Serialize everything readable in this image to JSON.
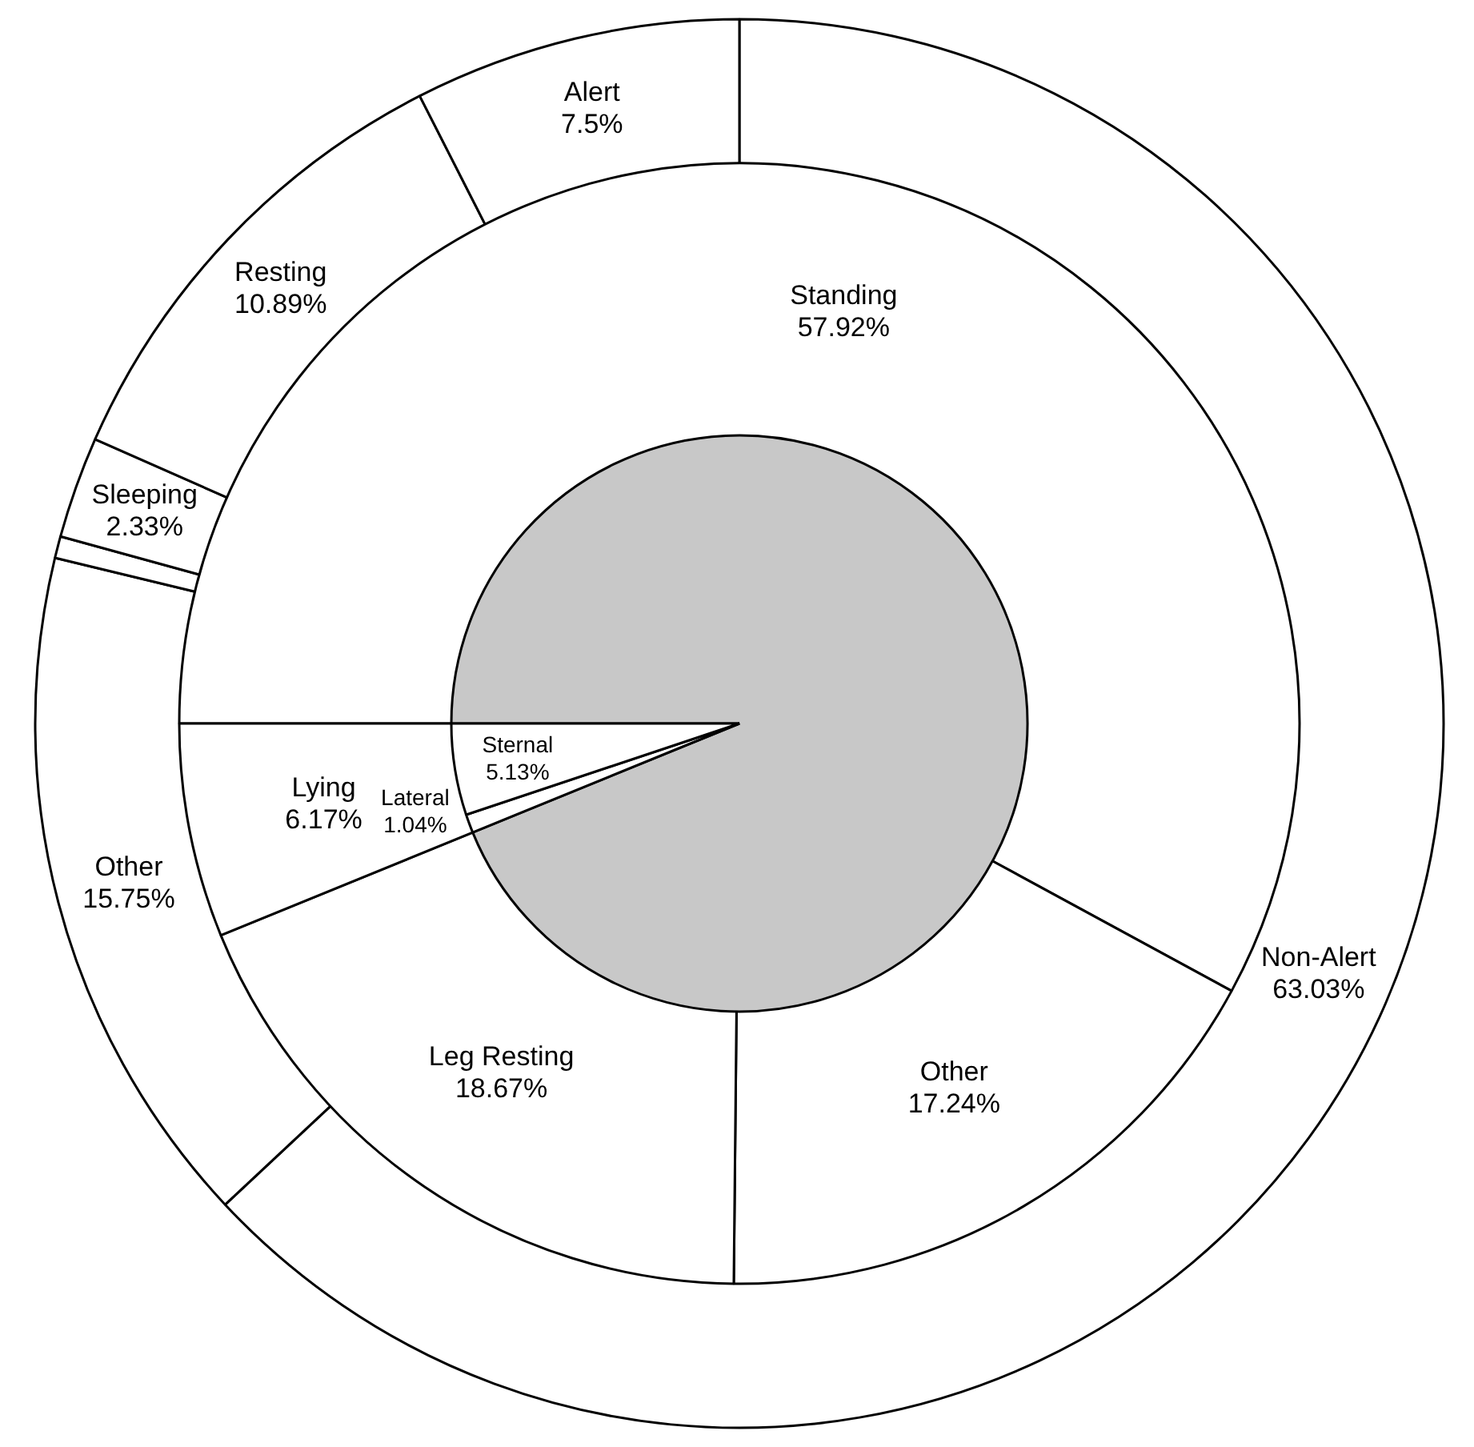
{
  "chart_data": [
    {
      "type": "donut",
      "categories": [
        "Non-Alert",
        "Other",
        null,
        "Sleeping",
        "Resting",
        "Alert"
      ],
      "values": [
        63.03,
        15.75,
        0.5,
        2.33,
        10.89,
        7.5
      ],
      "value_labels": [
        "63.03%",
        "15.75%",
        null,
        "2.33%",
        "10.89%",
        "7.5%"
      ],
      "colors": [
        "#ffffff",
        "#ffffff",
        "#ffffff",
        "#ffffff",
        "#ffffff",
        "#ffffff"
      ]
    },
    {
      "type": "donut",
      "categories": [
        "Standing",
        "Other",
        "Leg Resting",
        "Lying"
      ],
      "values": [
        57.92,
        17.24,
        18.67,
        6.17
      ],
      "value_labels": [
        "57.92%",
        "17.24%",
        "18.67%",
        "6.17%"
      ],
      "colors": [
        "#ffffff",
        "#ffffff",
        "#ffffff",
        "#ffffff"
      ]
    },
    {
      "type": "pie",
      "categories": [
        null,
        "Lateral",
        "Sternal"
      ],
      "values": [
        93.83,
        1.04,
        5.13
      ],
      "value_labels": [
        null,
        "1.04%",
        "5.13%"
      ],
      "colors": [
        "#c8c8c8",
        "#ffffff",
        "#ffffff"
      ]
    }
  ]
}
